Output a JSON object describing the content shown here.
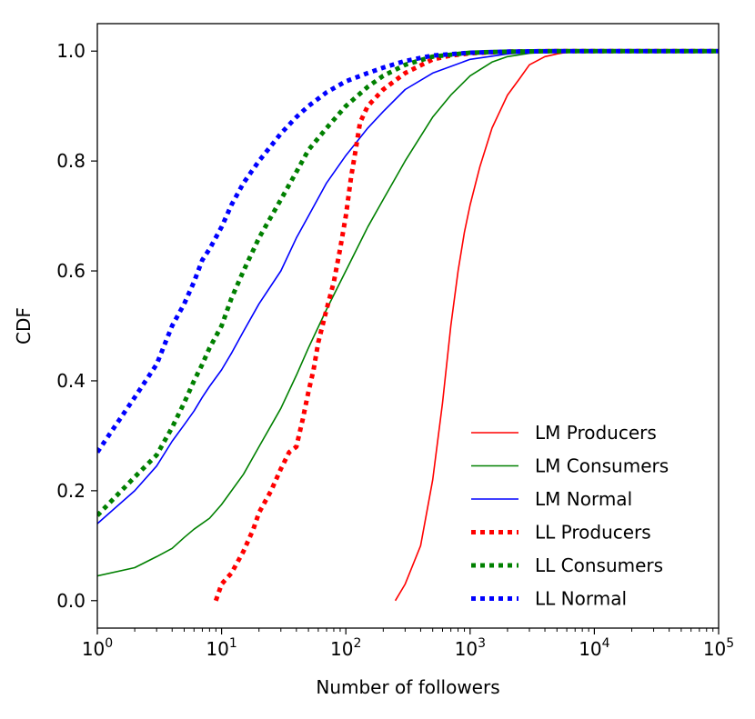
{
  "chart_data": {
    "type": "line",
    "xscale": "log",
    "xlim": [
      1,
      100000
    ],
    "ylim": [
      -0.05,
      1.05
    ],
    "xlabel": "Number of followers",
    "ylabel": "CDF",
    "x_ticks": [
      {
        "value": 1,
        "base": "10",
        "exp": "0"
      },
      {
        "value": 10,
        "base": "10",
        "exp": "1"
      },
      {
        "value": 100,
        "base": "10",
        "exp": "2"
      },
      {
        "value": 1000,
        "base": "10",
        "exp": "3"
      },
      {
        "value": 10000,
        "base": "10",
        "exp": "4"
      },
      {
        "value": 100000,
        "base": "10",
        "exp": "5"
      }
    ],
    "y_ticks": [
      {
        "value": 0.0,
        "label": "0.0"
      },
      {
        "value": 0.2,
        "label": "0.2"
      },
      {
        "value": 0.4,
        "label": "0.4"
      },
      {
        "value": 0.6,
        "label": "0.6"
      },
      {
        "value": 0.8,
        "label": "0.8"
      },
      {
        "value": 1.0,
        "label": "1.0"
      }
    ],
    "legend_position": "lower-right",
    "series": [
      {
        "name": "LM Producers",
        "color": "#ff0000",
        "style": "solid",
        "x": [
          250,
          300,
          400,
          500,
          600,
          700,
          800,
          900,
          1000,
          1200,
          1500,
          2000,
          2500,
          3000,
          4000,
          5000,
          6000,
          8000,
          10000,
          100000
        ],
        "y": [
          0.0,
          0.03,
          0.1,
          0.22,
          0.36,
          0.5,
          0.6,
          0.67,
          0.72,
          0.79,
          0.86,
          0.92,
          0.95,
          0.975,
          0.99,
          0.995,
          0.998,
          1.0,
          1.0,
          1.0
        ]
      },
      {
        "name": "LM Consumers",
        "color": "#008000",
        "style": "solid",
        "x": [
          1,
          2,
          3,
          4,
          5,
          6,
          8,
          10,
          15,
          20,
          30,
          40,
          50,
          70,
          100,
          150,
          200,
          300,
          500,
          700,
          1000,
          1500,
          2000,
          3000,
          5000,
          10000,
          100000
        ],
        "y": [
          0.045,
          0.06,
          0.08,
          0.095,
          0.115,
          0.13,
          0.15,
          0.175,
          0.23,
          0.28,
          0.35,
          0.41,
          0.46,
          0.53,
          0.6,
          0.68,
          0.73,
          0.8,
          0.88,
          0.92,
          0.955,
          0.98,
          0.99,
          0.996,
          0.999,
          1.0,
          1.0
        ]
      },
      {
        "name": "LM Normal",
        "color": "#0000ff",
        "style": "solid",
        "x": [
          1,
          2,
          3,
          4,
          5,
          6,
          7,
          8,
          10,
          12,
          15,
          20,
          30,
          40,
          50,
          70,
          100,
          150,
          200,
          300,
          500,
          1000,
          2000,
          3000,
          5000,
          10000,
          100000
        ],
        "y": [
          0.14,
          0.2,
          0.245,
          0.29,
          0.32,
          0.345,
          0.37,
          0.39,
          0.42,
          0.45,
          0.49,
          0.54,
          0.6,
          0.66,
          0.7,
          0.76,
          0.81,
          0.86,
          0.89,
          0.93,
          0.96,
          0.985,
          0.995,
          0.998,
          1.0,
          1.0,
          1.0
        ]
      },
      {
        "name": "LL Producers",
        "color": "#ff0000",
        "style": "dotted",
        "x": [
          9,
          10,
          12,
          15,
          18,
          20,
          25,
          30,
          35,
          40,
          45,
          50,
          55,
          60,
          70,
          80,
          90,
          100,
          110,
          120,
          130,
          150,
          200,
          300,
          500,
          700,
          1000,
          2000,
          5000,
          10000,
          100000
        ],
        "y": [
          0.0,
          0.03,
          0.05,
          0.09,
          0.13,
          0.16,
          0.2,
          0.24,
          0.27,
          0.28,
          0.33,
          0.38,
          0.42,
          0.47,
          0.53,
          0.58,
          0.64,
          0.7,
          0.77,
          0.82,
          0.87,
          0.9,
          0.93,
          0.96,
          0.985,
          0.992,
          0.996,
          0.999,
          1.0,
          1.0,
          1.0
        ]
      },
      {
        "name": "LL Consumers",
        "color": "#008000",
        "style": "dotted",
        "x": [
          1,
          2,
          3,
          4,
          5,
          6,
          7,
          8,
          10,
          12,
          15,
          20,
          30,
          40,
          50,
          70,
          100,
          150,
          200,
          300,
          500,
          1000,
          2000,
          5000,
          10000,
          100000
        ],
        "y": [
          0.155,
          0.225,
          0.265,
          0.315,
          0.36,
          0.4,
          0.43,
          0.46,
          0.5,
          0.55,
          0.6,
          0.66,
          0.73,
          0.78,
          0.82,
          0.86,
          0.9,
          0.935,
          0.955,
          0.975,
          0.99,
          0.997,
          0.999,
          1.0,
          1.0,
          1.0
        ]
      },
      {
        "name": "LL Normal",
        "color": "#0000ff",
        "style": "dotted",
        "x": [
          1,
          2,
          3,
          4,
          5,
          6,
          7,
          8,
          10,
          12,
          15,
          20,
          30,
          40,
          50,
          70,
          100,
          150,
          200,
          300,
          500,
          1000,
          2000,
          5000,
          10000,
          100000
        ],
        "y": [
          0.27,
          0.37,
          0.43,
          0.5,
          0.54,
          0.58,
          0.62,
          0.64,
          0.68,
          0.72,
          0.76,
          0.8,
          0.85,
          0.88,
          0.9,
          0.925,
          0.945,
          0.96,
          0.97,
          0.982,
          0.992,
          0.997,
          0.999,
          1.0,
          1.0,
          1.0
        ]
      }
    ]
  }
}
